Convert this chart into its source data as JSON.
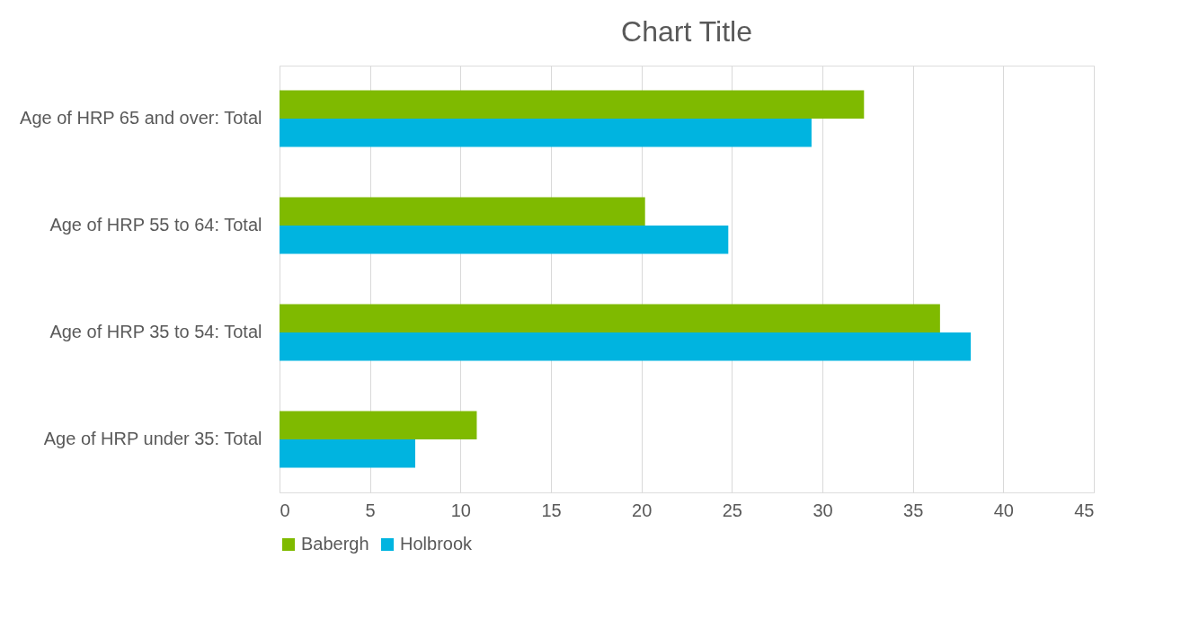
{
  "chart_data": {
    "type": "bar",
    "orientation": "horizontal",
    "title": "Chart Title",
    "categories": [
      "Age of HRP 65 and over: Total",
      "Age of HRP 55 to 64: Total",
      "Age of HRP 35 to 54: Total",
      "Age of HRP under 35: Total"
    ],
    "series": [
      {
        "name": "Babergh",
        "color": "#7fba00",
        "values": [
          32.3,
          20.2,
          36.5,
          10.9
        ]
      },
      {
        "name": "Holbrook",
        "color": "#00b4e0",
        "values": [
          29.4,
          24.8,
          38.2,
          7.5
        ]
      }
    ],
    "xlim": [
      0,
      45
    ],
    "xticks": [
      0,
      5,
      10,
      15,
      20,
      25,
      30,
      35,
      40,
      45
    ],
    "grid": "x",
    "legend": "bottom"
  }
}
